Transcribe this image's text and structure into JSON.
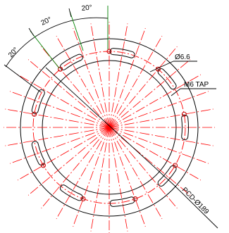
{
  "drawing": {
    "colors": {
      "outline": "#000000",
      "centerline": "#ff0000",
      "dimension": "#000000",
      "extension": "#008000"
    },
    "outer_circles": {
      "flange_outer": "outer edge",
      "flange_inner": "inner edge",
      "pcd_circle": "bolt circle"
    },
    "slot_angles_deg": [
      80,
      120,
      160,
      200,
      240,
      280,
      320,
      0,
      40
    ],
    "tap_hole_angles_deg": [
      90,
      130,
      170,
      210,
      250,
      290,
      330,
      10,
      50
    ],
    "radial_centerline_angles_deg": [
      0,
      10,
      20,
      30,
      40,
      50,
      60,
      70,
      80,
      90,
      100,
      110,
      120,
      130,
      140,
      150,
      160,
      170,
      180,
      190,
      200,
      210,
      220,
      230,
      240,
      250,
      260,
      270,
      280,
      290,
      300,
      310,
      320,
      330,
      340,
      350
    ],
    "angle_dimensions": [
      {
        "label": "20°"
      },
      {
        "label": "20°"
      },
      {
        "label": "20°"
      }
    ],
    "callouts": {
      "hole_diameter": "Ø6.6",
      "tap": "M6 TAP",
      "pcd": "PCD-Ø189"
    }
  }
}
